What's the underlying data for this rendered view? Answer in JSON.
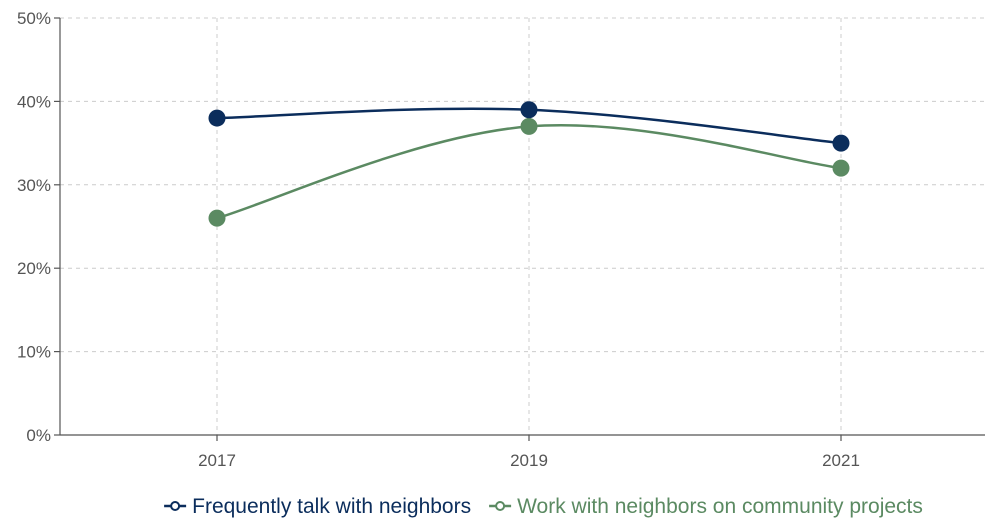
{
  "chart_data": {
    "type": "line",
    "title": "",
    "xlabel": "",
    "ylabel": "",
    "categories": [
      "2017",
      "2019",
      "2021"
    ],
    "y_ticks": [
      "0%",
      "10%",
      "20%",
      "30%",
      "40%",
      "50%"
    ],
    "ylim": [
      0,
      50
    ],
    "grid": true,
    "legend_position": "bottom",
    "series": [
      {
        "name": "Frequently talk with neighbors",
        "color": "#0b2d5c",
        "values": [
          38,
          39,
          35
        ]
      },
      {
        "name": "Work with neighbors on community projects",
        "color": "#5b8a62",
        "values": [
          26,
          37,
          32
        ]
      }
    ]
  }
}
